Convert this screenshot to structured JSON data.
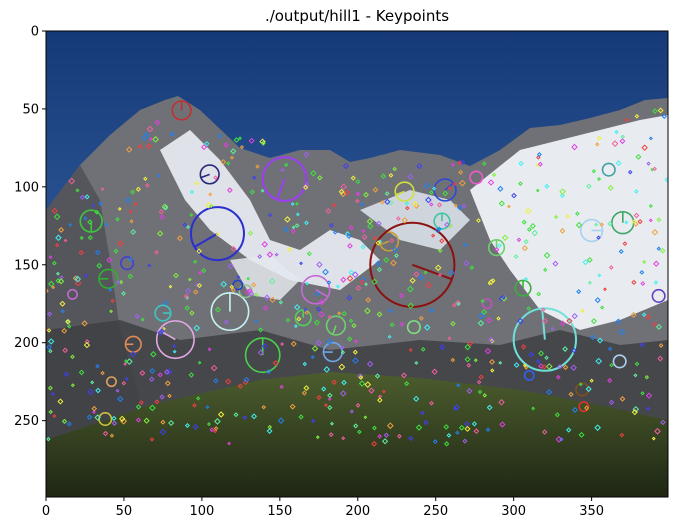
{
  "chart_data": {
    "type": "image",
    "title": "./output/hill1 - Keypoints",
    "xlabel": "",
    "ylabel": "",
    "xlim": [
      0,
      399
    ],
    "ylim": [
      299,
      0
    ],
    "xticks": [
      0,
      50,
      100,
      150,
      200,
      250,
      300,
      350
    ],
    "yticks": [
      0,
      50,
      100,
      150,
      200,
      250
    ],
    "image_description_colors": {
      "sky_top": "#163a78",
      "sky_bottom": "#3f6fb2",
      "rock": "#6f7074",
      "snow": "#e9eef4",
      "grass": "#4a5a2c",
      "grass_dark": "#27301a"
    },
    "keypoints": [
      {
        "x": 220,
        "y": 135,
        "r": 6,
        "angle": 200,
        "color": "#c8a03a"
      },
      {
        "x": 235,
        "y": 150,
        "r": 27,
        "angle": -20,
        "color": "#8b1010"
      },
      {
        "x": 153,
        "y": 95,
        "r": 14,
        "angle": 250,
        "color": "#9b3ff0"
      },
      {
        "x": 110,
        "y": 130,
        "r": 17,
        "angle": 210,
        "color": "#2a2fd0"
      },
      {
        "x": 118,
        "y": 180,
        "r": 12,
        "angle": 90,
        "color": "#c9f3f3"
      },
      {
        "x": 83,
        "y": 198,
        "r": 12,
        "angle": 150,
        "color": "#e3a9e3"
      },
      {
        "x": 139,
        "y": 208,
        "r": 11,
        "angle": 90,
        "color": "#4bd04b"
      },
      {
        "x": 173,
        "y": 166,
        "r": 9,
        "angle": 330,
        "color": "#c56bd8"
      },
      {
        "x": 320,
        "y": 198,
        "r": 20,
        "angle": 95,
        "color": "#6fe0d8"
      },
      {
        "x": 350,
        "y": 128,
        "r": 7,
        "angle": 0,
        "color": "#a8d0f0"
      },
      {
        "x": 256,
        "y": 102,
        "r": 7,
        "angle": 40,
        "color": "#2f48d8"
      },
      {
        "x": 230,
        "y": 103,
        "r": 6,
        "angle": 200,
        "color": "#d0e040"
      },
      {
        "x": 87,
        "y": 51,
        "r": 6,
        "angle": 90,
        "color": "#c03030"
      },
      {
        "x": 105,
        "y": 92,
        "r": 6,
        "angle": 200,
        "color": "#2a2a7a"
      },
      {
        "x": 29,
        "y": 122,
        "r": 7,
        "angle": 270,
        "color": "#3ec63e"
      },
      {
        "x": 40,
        "y": 159,
        "r": 6,
        "angle": 180,
        "color": "#2eb02e"
      },
      {
        "x": 370,
        "y": 123,
        "r": 7,
        "angle": 90,
        "color": "#3fa56a"
      },
      {
        "x": 186,
        "y": 189,
        "r": 6,
        "angle": 250,
        "color": "#6cd06c"
      },
      {
        "x": 184,
        "y": 206,
        "r": 6,
        "angle": 180,
        "color": "#6fa8e8"
      },
      {
        "x": 165,
        "y": 184,
        "r": 5,
        "angle": 90,
        "color": "#52d05a"
      },
      {
        "x": 254,
        "y": 122,
        "r": 5,
        "angle": 90,
        "color": "#3ec6a0"
      },
      {
        "x": 289,
        "y": 139,
        "r": 5,
        "angle": 90,
        "color": "#6cd06c"
      },
      {
        "x": 306,
        "y": 165,
        "r": 5,
        "angle": 90,
        "color": "#39b039"
      },
      {
        "x": 56,
        "y": 201,
        "r": 5,
        "angle": 180,
        "color": "#e08a58"
      },
      {
        "x": 75,
        "y": 181,
        "r": 5,
        "angle": 0,
        "color": "#3ec6c6"
      },
      {
        "x": 38,
        "y": 249,
        "r": 4,
        "angle": 0,
        "color": "#d0c040"
      },
      {
        "x": 344,
        "y": 230,
        "r": 4,
        "angle": 0,
        "color": "#80501a"
      },
      {
        "x": 345,
        "y": 241,
        "r": 3,
        "angle": 0,
        "color": "#e03030"
      },
      {
        "x": 276,
        "y": 94,
        "r": 4,
        "angle": 0,
        "color": "#f05ad0"
      },
      {
        "x": 361,
        "y": 89,
        "r": 4,
        "angle": 0,
        "color": "#40a0a0"
      },
      {
        "x": 52,
        "y": 149,
        "r": 4,
        "angle": 0,
        "color": "#4040d0"
      },
      {
        "x": 393,
        "y": 170,
        "r": 4,
        "angle": 0,
        "color": "#6040c0"
      },
      {
        "x": 368,
        "y": 212,
        "r": 4,
        "angle": 0,
        "color": "#b0d0f0"
      },
      {
        "x": 17,
        "y": 169,
        "r": 3,
        "angle": 0,
        "color": "#c06ad0"
      },
      {
        "x": 128,
        "y": 167,
        "r": 4,
        "angle": 0,
        "color": "#90c090"
      },
      {
        "x": 236,
        "y": 190,
        "r": 4,
        "angle": 0,
        "color": "#80e080"
      },
      {
        "x": 123,
        "y": 163,
        "r": 3,
        "angle": 0,
        "color": "#2040d0"
      },
      {
        "x": 42,
        "y": 225,
        "r": 3,
        "angle": 0,
        "color": "#e0a060"
      },
      {
        "x": 283,
        "y": 175,
        "r": 3,
        "angle": 0,
        "color": "#c050c0"
      },
      {
        "x": 310,
        "y": 221,
        "r": 3,
        "angle": 0,
        "color": "#3060f0"
      }
    ]
  }
}
